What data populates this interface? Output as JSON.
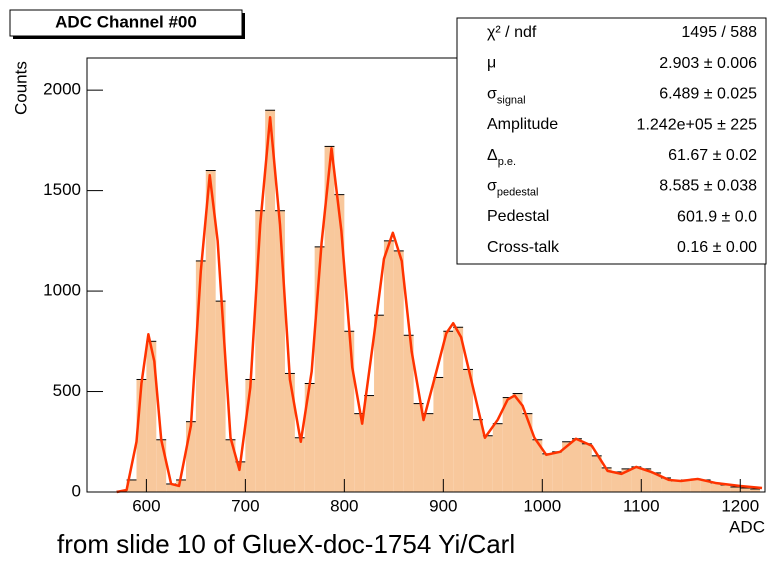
{
  "chart_data": {
    "type": "histogram",
    "title": "ADC Channel #00",
    "x_label": "ADC",
    "y_label": "Counts",
    "bins": [
      570,
      580,
      590,
      600,
      610,
      620,
      630,
      640,
      650,
      660,
      670,
      680,
      690,
      700,
      710,
      720,
      730,
      740,
      750,
      760,
      770,
      780,
      790,
      800,
      810,
      820,
      830,
      840,
      850,
      860,
      870,
      880,
      890,
      900,
      910,
      920,
      930,
      940,
      950,
      960,
      970,
      980,
      990,
      1000,
      1010,
      1020,
      1030,
      1040,
      1050,
      1060,
      1070,
      1080,
      1090,
      1100,
      1110,
      1120,
      1130,
      1140,
      1150,
      1160,
      1170,
      1180,
      1190,
      1200,
      1210,
      1220
    ],
    "counts": [
      5,
      60,
      560,
      750,
      260,
      40,
      60,
      350,
      1150,
      1600,
      950,
      260,
      150,
      560,
      1400,
      1900,
      1400,
      590,
      270,
      540,
      1220,
      1720,
      1480,
      800,
      390,
      480,
      880,
      1250,
      1200,
      780,
      440,
      390,
      570,
      800,
      820,
      610,
      360,
      280,
      340,
      470,
      490,
      390,
      260,
      190,
      200,
      250,
      265,
      240,
      180,
      120,
      100,
      115,
      125,
      115,
      95,
      70,
      55,
      60,
      65,
      60,
      45,
      35,
      25,
      20,
      15
    ],
    "color": "#f8c89c",
    "edge_color": "#000000",
    "fit": {
      "x": [
        570,
        580,
        590,
        595,
        602,
        608,
        615,
        625,
        633,
        645,
        655,
        664,
        672,
        685,
        694,
        705,
        715,
        725,
        735,
        745,
        756,
        767,
        777,
        787,
        797,
        808,
        818,
        830,
        840,
        849,
        858,
        868,
        880,
        893,
        903,
        910,
        918,
        930,
        942,
        955,
        965,
        972,
        980,
        992,
        1004,
        1018,
        1034,
        1050,
        1066,
        1080,
        1095,
        1110,
        1128,
        1140,
        1157,
        1175,
        1200,
        1222
      ],
      "values": [
        0,
        10,
        250,
        540,
        785,
        650,
        260,
        40,
        30,
        330,
        1100,
        1577,
        1250,
        270,
        110,
        520,
        1330,
        1865,
        1330,
        560,
        250,
        600,
        1240,
        1711,
        1300,
        620,
        340,
        780,
        1160,
        1290,
        1150,
        700,
        358,
        600,
        790,
        840,
        770,
        520,
        270,
        360,
        460,
        480,
        430,
        270,
        185,
        200,
        265,
        230,
        105,
        90,
        125,
        100,
        60,
        55,
        65,
        45,
        30,
        20
      ],
      "color": "#ff3300"
    },
    "xlim": [
      540,
      1225
    ],
    "ylim": [
      0,
      2160
    ],
    "xticks": [
      600,
      700,
      800,
      900,
      1000,
      1100,
      1200
    ],
    "yticks": [
      0,
      500,
      1000,
      1500,
      2000
    ],
    "stats": [
      {
        "label": "χ² / ndf",
        "value": "1495 / 588"
      },
      {
        "label": "μ",
        "value": "2.903 ± 0.006"
      },
      {
        "label": "σ",
        "sub": "signal",
        "value": "6.489 ± 0.025"
      },
      {
        "label": "Amplitude",
        "value": "1.242e+05 ± 225"
      },
      {
        "label": "Δ",
        "sub": "p.e.",
        "value": "61.67 ± 0.02"
      },
      {
        "label": "σ",
        "sub": "pedestal",
        "value": "8.585 ± 0.038"
      },
      {
        "label": "Pedestal",
        "value": "601.9 ± 0.0"
      },
      {
        "label": "Cross-talk",
        "value": "0.16 ± 0.00"
      }
    ]
  },
  "caption": "from slide 10 of GlueX-doc-1754 Yi/Carl"
}
